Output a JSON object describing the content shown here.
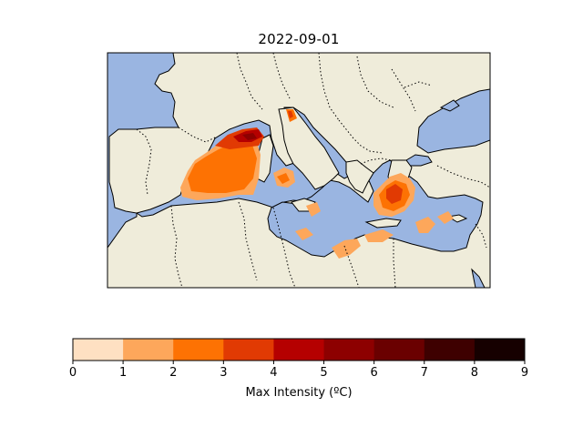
{
  "title": "2022-09-01",
  "colorbar": {
    "label": "Max Intensity (ºC)",
    "ticks": [
      "0",
      "1",
      "2",
      "3",
      "4",
      "5",
      "6",
      "7",
      "8",
      "9"
    ],
    "colors": [
      "#fee0c2",
      "#fda75b",
      "#fd7203",
      "#e13a03",
      "#b50000",
      "#8d0000",
      "#6a0000",
      "#3e0000",
      "#160000"
    ]
  },
  "map_colors": {
    "sea": "#9ab5e1",
    "land": "#efecda",
    "coast": "#000000",
    "border": "#000000"
  }
}
